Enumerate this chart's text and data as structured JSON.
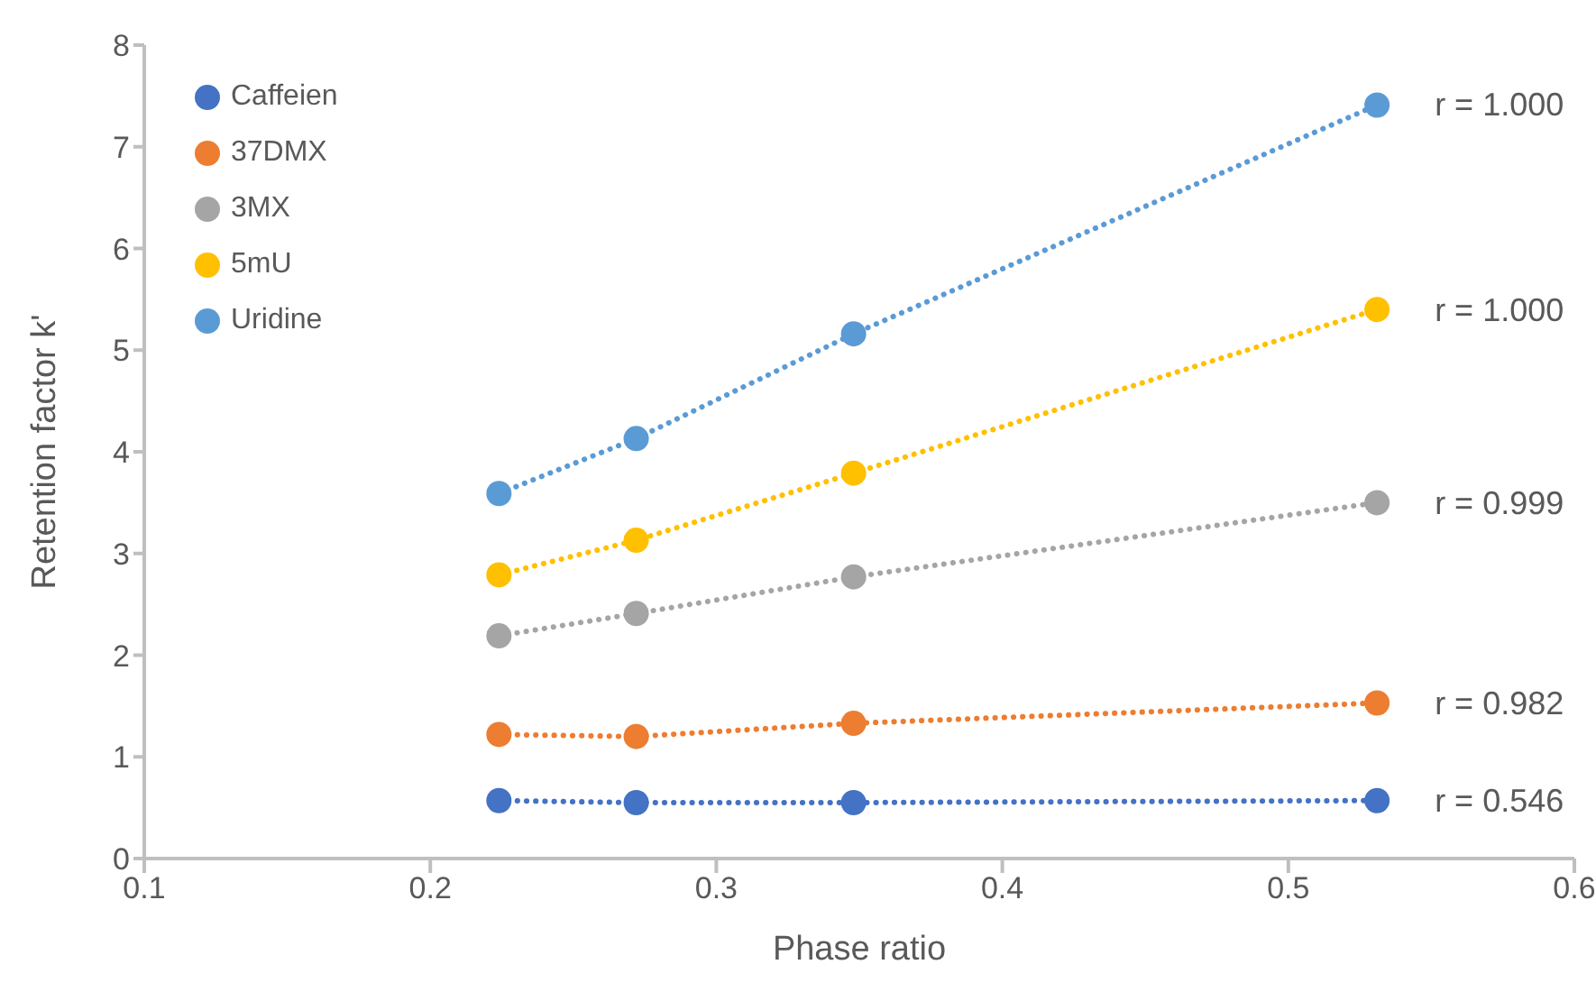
{
  "chart_data": {
    "type": "line",
    "xlabel": "Phase ratio",
    "ylabel": "Retention factor k'",
    "x": [
      0.224,
      0.272,
      0.348,
      0.531
    ],
    "series": [
      {
        "name": "Caffeien",
        "color": "#4472c4",
        "values": [
          0.57,
          0.55,
          0.55,
          0.57
        ]
      },
      {
        "name": "37DMX",
        "color": "#ed7d31",
        "values": [
          1.22,
          1.2,
          1.33,
          1.53
        ]
      },
      {
        "name": "3MX",
        "color": "#a5a5a5",
        "values": [
          2.19,
          2.41,
          2.77,
          3.5
        ]
      },
      {
        "name": "5mU",
        "color": "#ffc000",
        "values": [
          2.79,
          3.13,
          3.79,
          5.4
        ]
      },
      {
        "name": "Uridine",
        "color": "#5b9bd5",
        "values": [
          3.59,
          4.13,
          5.16,
          7.41
        ]
      }
    ],
    "xlim": [
      0.1,
      0.6
    ],
    "xticks": [
      0.1,
      0.2,
      0.3,
      0.4,
      0.5,
      0.6
    ],
    "ylim": [
      0,
      8
    ],
    "yticks": [
      0,
      1,
      2,
      3,
      4,
      5,
      6,
      7,
      8
    ],
    "grid": false,
    "legend": "top left",
    "marker": "circle",
    "line_style": "dotted",
    "annotations": [
      "r = 1.000",
      "r = 1.000",
      "r = 0.999",
      "r = 0.982",
      "r = 0.546"
    ]
  }
}
